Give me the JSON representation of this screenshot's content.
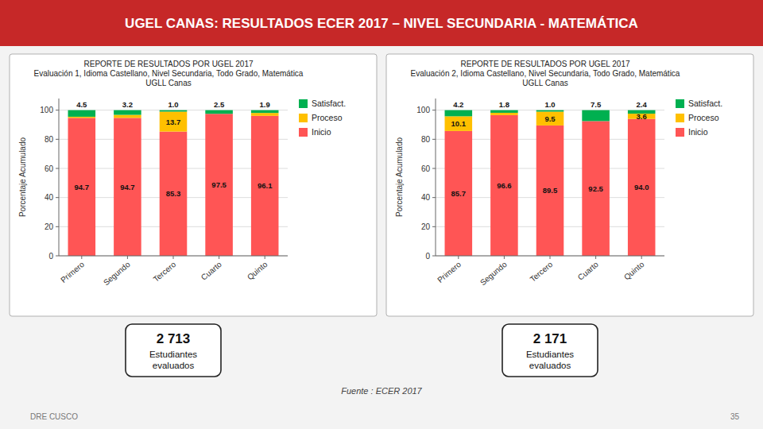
{
  "title": "UGEL CANAS: RESULTADOS ECER 2017 – NIVEL SECUNDARIA - MATEMÁTICA",
  "annotations": [
    "Fuente : ECER 2017",
    "DRE CUSCO",
    "35"
  ],
  "chart_data": [
    {
      "type": "bar",
      "stacked": true,
      "title": "REPORTE DE RESULTADOS POR UGEL 2017\nEvaluación 1, Idioma Castellano, Nivel Secundaria, Todo Grado, Matemática\nUGLL Canas",
      "ylabel": "Porcentaje Acumulado",
      "categories": [
        "Primero",
        "Segundo",
        "Tercero",
        "Cuarto",
        "Quinto"
      ],
      "series": [
        {
          "name": "Inicio",
          "color": "#FF5555",
          "values": [
            94.7,
            94.7,
            85.3,
            97.5,
            96.1
          ],
          "value_labels": [
            "94.7",
            "94.7",
            "85.3",
            "97.5",
            "96.1"
          ]
        },
        {
          "name": "Proceso",
          "color": "#FFC000",
          "values": [
            0.8,
            2.1,
            13.7,
            0.0,
            2.0
          ],
          "value_labels": [
            null,
            null,
            "13.7",
            null,
            null
          ]
        },
        {
          "name": "Satisfact.",
          "color": "#00B050",
          "values": [
            4.5,
            3.2,
            1.0,
            2.5,
            1.9
          ],
          "value_labels": [
            "4.5",
            "3.2",
            "1.0",
            "2.5",
            "1.9"
          ]
        }
      ],
      "ylim": [
        0,
        108
      ],
      "yticks": [
        0,
        20,
        40,
        60,
        80,
        100
      ],
      "grid": true,
      "legend": "right",
      "data_labels": true,
      "annotations": [
        "2 713",
        "Estudiantes\nevaluados"
      ]
    },
    {
      "type": "bar",
      "stacked": true,
      "title": "REPORTE DE RESULTADOS POR UGEL 2017\nEvaluación 2, Idioma Castellano, Nivel Secundaria, Todo Grado, Matemática\nUGLL Canas",
      "ylabel": "Porcentaje Acumulado",
      "categories": [
        "Primero",
        "Segundo",
        "Tercero",
        "Cuarto",
        "Quinto"
      ],
      "series": [
        {
          "name": "Inicio",
          "color": "#FF5555",
          "values": [
            85.7,
            96.6,
            89.5,
            92.5,
            94.0
          ],
          "value_labels": [
            "85.7",
            "96.6",
            "89.5",
            "92.5",
            "94.0"
          ]
        },
        {
          "name": "Proceso",
          "color": "#FFC000",
          "values": [
            10.1,
            1.6,
            9.5,
            0.0,
            3.6
          ],
          "value_labels": [
            "10.1",
            null,
            "9.5",
            null,
            "3.6"
          ]
        },
        {
          "name": "Satisfact.",
          "color": "#00B050",
          "values": [
            4.2,
            1.8,
            1.0,
            7.5,
            2.4
          ],
          "value_labels": [
            "4.2",
            "1.8",
            "1.0",
            "7.5",
            "2.4"
          ]
        }
      ],
      "ylim": [
        0,
        108
      ],
      "yticks": [
        0,
        20,
        40,
        60,
        80,
        100
      ],
      "grid": true,
      "legend": "right",
      "data_labels": true,
      "annotations": [
        "2 171",
        "Estudiantes\nevaluados"
      ]
    }
  ]
}
